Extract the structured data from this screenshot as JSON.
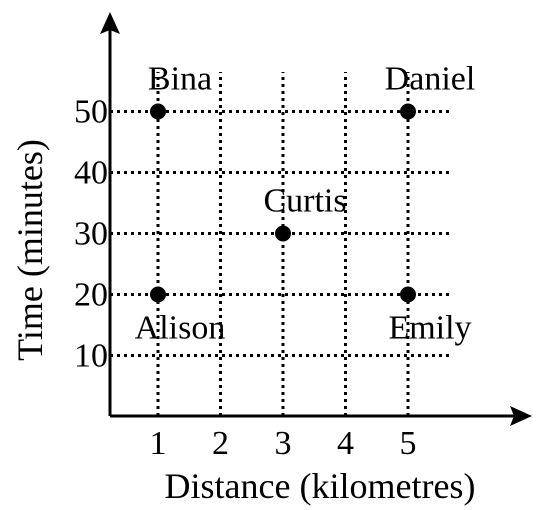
{
  "chart_data": {
    "type": "scatter",
    "title": "",
    "xlabel": "Distance (kilometres)",
    "ylabel": "Time (minutes)",
    "x_ticks": [
      1,
      2,
      3,
      4,
      5
    ],
    "y_ticks": [
      10,
      20,
      30,
      40,
      50
    ],
    "grid": true,
    "legend": "none",
    "points": [
      {
        "label": "Alison",
        "x": 1,
        "y": 20,
        "label_position": "below"
      },
      {
        "label": "Bina",
        "x": 1,
        "y": 50,
        "label_position": "above"
      },
      {
        "label": "Curtis",
        "x": 3,
        "y": 30,
        "label_position": "above"
      },
      {
        "label": "Daniel",
        "x": 5,
        "y": 50,
        "label_position": "above"
      },
      {
        "label": "Emily",
        "x": 5,
        "y": 20,
        "label_position": "below"
      }
    ],
    "colors": {
      "marks": "#000000",
      "background": "#ffffff"
    }
  }
}
